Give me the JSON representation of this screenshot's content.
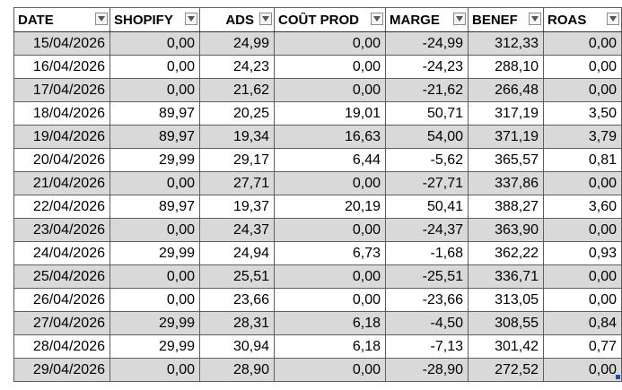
{
  "table": {
    "headers": [
      {
        "key": "date",
        "label": "DATE"
      },
      {
        "key": "shopify",
        "label": "SHOPIFY"
      },
      {
        "key": "ads",
        "label": "ADS"
      },
      {
        "key": "cout",
        "label": "COÛT PROD"
      },
      {
        "key": "marge",
        "label": "MARGE"
      },
      {
        "key": "benef",
        "label": "BENEF"
      },
      {
        "key": "roas",
        "label": "ROAS"
      }
    ],
    "rows": [
      [
        "15/04/2026",
        "0,00",
        "24,99",
        "0,00",
        "-24,99",
        "312,33",
        "0,00"
      ],
      [
        "16/04/2026",
        "0,00",
        "24,23",
        "0,00",
        "-24,23",
        "288,10",
        "0,00"
      ],
      [
        "17/04/2026",
        "0,00",
        "21,62",
        "0,00",
        "-21,62",
        "266,48",
        "0,00"
      ],
      [
        "18/04/2026",
        "89,97",
        "20,25",
        "19,01",
        "50,71",
        "317,19",
        "3,50"
      ],
      [
        "19/04/2026",
        "89,97",
        "19,34",
        "16,63",
        "54,00",
        "371,19",
        "3,79"
      ],
      [
        "20/04/2026",
        "29,99",
        "29,17",
        "6,44",
        "-5,62",
        "365,57",
        "0,81"
      ],
      [
        "21/04/2026",
        "0,00",
        "27,71",
        "0,00",
        "-27,71",
        "337,86",
        "0,00"
      ],
      [
        "22/04/2026",
        "89,97",
        "19,37",
        "20,19",
        "50,41",
        "388,27",
        "3,60"
      ],
      [
        "23/04/2026",
        "0,00",
        "24,37",
        "0,00",
        "-24,37",
        "363,90",
        "0,00"
      ],
      [
        "24/04/2026",
        "29,99",
        "24,94",
        "6,73",
        "-1,68",
        "362,22",
        "0,93"
      ],
      [
        "25/04/2026",
        "0,00",
        "25,51",
        "0,00",
        "-25,51",
        "336,71",
        "0,00"
      ],
      [
        "26/04/2026",
        "0,00",
        "23,66",
        "0,00",
        "-23,66",
        "313,05",
        "0,00"
      ],
      [
        "27/04/2026",
        "29,99",
        "28,31",
        "6,18",
        "-4,50",
        "308,55",
        "0,84"
      ],
      [
        "28/04/2026",
        "29,99",
        "30,94",
        "6,18",
        "-7,13",
        "301,42",
        "0,77"
      ],
      [
        "29/04/2026",
        "0,00",
        "28,90",
        "0,00",
        "-28,90",
        "272,52",
        "0,00"
      ]
    ]
  },
  "icons": {
    "filter": "filter-dropdown-arrow-icon",
    "resize": "table-resize-handle-icon"
  },
  "colors": {
    "band_row": "#d9d9d9",
    "plain_row": "#ffffff",
    "grid_line": "#5e5e5e",
    "resize_handle": "#1f4e9c"
  }
}
